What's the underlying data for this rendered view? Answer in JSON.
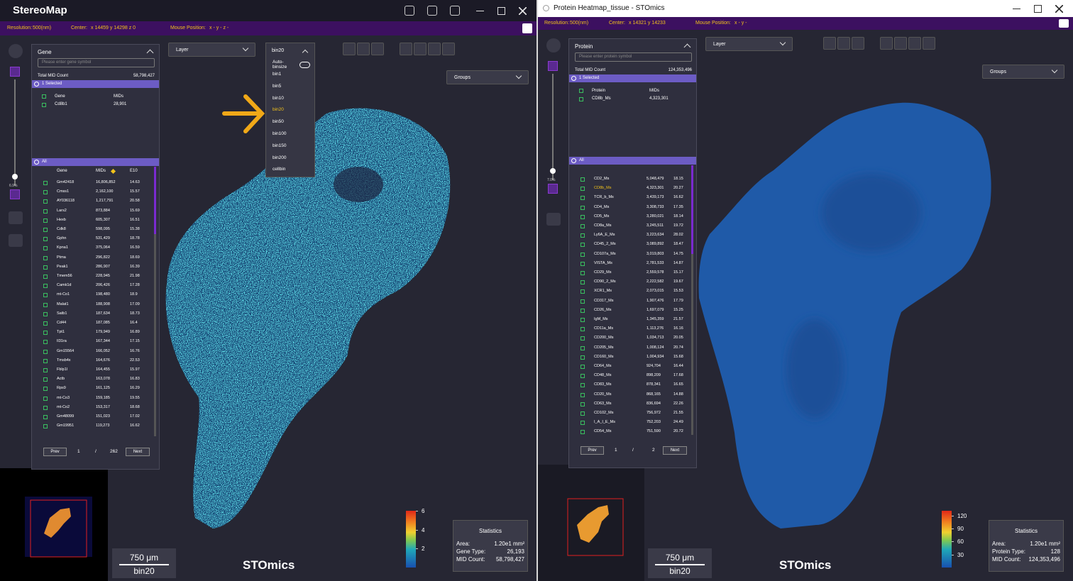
{
  "windows": [
    {
      "title": "StereoMap",
      "info": [
        [
          "Resolution:",
          "500(nm)"
        ],
        [
          "Center:",
          "x  14459  y  14298  z  0"
        ],
        [
          "Mouse Position:",
          "x -  y -  z -"
        ]
      ],
      "panel": {
        "title": "Gene",
        "search_placeholder": "Please enter gene symbol",
        "total_label": "Total MID Count",
        "total": "58,798,427",
        "selected_label": "1 Selected",
        "selected_headers": [
          "Gene",
          "MIDs"
        ],
        "selected_rows": [
          [
            "Cd8b1",
            "28,901"
          ]
        ],
        "all_label": "All",
        "all_headers": [
          "Gene",
          "MIDs",
          "E10"
        ],
        "rows": [
          [
            "Gm42418",
            "16,806,852",
            "14.63"
          ],
          [
            "Cmss1",
            "2,162,100",
            "15.57"
          ],
          [
            "AY036118",
            "1,217,791",
            "20.58"
          ],
          [
            "Lars2",
            "873,884",
            "15.69"
          ],
          [
            "Hexb",
            "605,307",
            "16.51"
          ],
          [
            "Cdk8",
            "598,095",
            "15.38"
          ],
          [
            "Gphn",
            "531,429",
            "18.78"
          ],
          [
            "Kpna1",
            "375,064",
            "16.59"
          ],
          [
            "Ptma",
            "296,822",
            "18.69"
          ],
          [
            "Peak1",
            "286,907",
            "16.39"
          ],
          [
            "Tmem56",
            "228,945",
            "21.98"
          ],
          [
            "Camk1d",
            "206,426",
            "17.28"
          ],
          [
            "mt-Co1",
            "198,480",
            "18.9"
          ],
          [
            "Malat1",
            "188,908",
            "17.09"
          ],
          [
            "Satb1",
            "187,634",
            "18.73"
          ],
          [
            "Cd44",
            "187,085",
            "16.4"
          ],
          [
            "Tpt1",
            "179,949",
            "16.89"
          ],
          [
            "Il31ra",
            "167,344",
            "17.15"
          ],
          [
            "Gm15564",
            "166,052",
            "16.76"
          ],
          [
            "Tmsb4x",
            "164,676",
            "22.53"
          ],
          [
            "Fblp1l",
            "164,455",
            "15.97"
          ],
          [
            "Actb",
            "163,078",
            "16.83"
          ],
          [
            "Rps9",
            "161,125",
            "16.29"
          ],
          [
            "mt-Co3",
            "159,185",
            "19.55"
          ],
          [
            "mt-Co2",
            "153,317",
            "18.68"
          ],
          [
            "Gm48099",
            "151,023",
            "17.02"
          ],
          [
            "Gm19951",
            "119,273",
            "16.62"
          ]
        ],
        "prev": "Prev",
        "page": "1",
        "sep": "/",
        "pages": "262",
        "next": "Next"
      },
      "layer": "Layer",
      "bin": {
        "current": "bin20",
        "options": [
          "Auto-binsize",
          "bin1",
          "bin5",
          "bin10",
          "bin20",
          "bin50",
          "bin100",
          "bin150",
          "bin200",
          "cellbin"
        ]
      },
      "groups": "Groups",
      "zoom": "6.9%",
      "colorbar": {
        "lim": [
          0,
          6
        ],
        "ticks": [
          6,
          4,
          2
        ]
      },
      "stats": {
        "title": "Statistics",
        "rows": [
          [
            "Area:",
            "1.20e1 mm²"
          ],
          [
            "Gene Type:",
            "26,193"
          ],
          [
            "MID Count:",
            "58,798,427"
          ]
        ]
      },
      "scale": {
        "length": "750 μm",
        "bin": "bin20"
      },
      "logo": "STOmics"
    },
    {
      "title": "Protein Heatmap_tissue - STOmics",
      "info": [
        [
          "Resolution:",
          "500(nm)"
        ],
        [
          "Center:",
          "x  14321  y  14233"
        ],
        [
          "Mouse Position:",
          "x -  y -"
        ]
      ],
      "panel": {
        "title": "Protein",
        "search_placeholder": "Please enter protein symbol",
        "total_label": "Total MID Count",
        "total": "124,353,496",
        "selected_label": "1 Selected",
        "selected_headers": [
          "Protein",
          "MIDs"
        ],
        "selected_rows": [
          [
            "CD8b_Ms",
            "4,323,301"
          ]
        ],
        "all_label": "All",
        "highlight_row": 1,
        "rows": [
          [
            "CD2_Ms",
            "5,048,479",
            "18.15"
          ],
          [
            "CD8b_Ms",
            "4,323,301",
            "20.27"
          ],
          [
            "TCR_b_Ms",
            "3,439,173",
            "16.62"
          ],
          [
            "CD4_Ms",
            "3,308,733",
            "17.35"
          ],
          [
            "CD5_Ms",
            "3,280,021",
            "18.14"
          ],
          [
            "CD8a_Ms",
            "3,245,511",
            "19.72"
          ],
          [
            "Ly6A_E_Ms",
            "3,223,634",
            "28.02"
          ],
          [
            "CD45_2_Ms",
            "3,089,892",
            "18.47"
          ],
          [
            "CD107a_Ms",
            "3,019,803",
            "14.75"
          ],
          [
            "VISTA_Ms",
            "2,781,533",
            "14.87"
          ],
          [
            "CD29_Ms",
            "2,559,578",
            "15.17"
          ],
          [
            "CD90_2_Ms",
            "2,222,582",
            "19.67"
          ],
          [
            "XCR1_Ms",
            "2,073,015",
            "15.53"
          ],
          [
            "CD317_Ms",
            "1,907,476",
            "17.79"
          ],
          [
            "CD26_Ms",
            "1,697,079",
            "15.25"
          ],
          [
            "IgM_Ms",
            "1,345,359",
            "21.57"
          ],
          [
            "CD11a_Ms",
            "1,113,276",
            "16.16"
          ],
          [
            "CD200_Ms",
            "1,034,713",
            "20.05"
          ],
          [
            "CD205_Ms",
            "1,008,124",
            "20.74"
          ],
          [
            "CD160_Ms",
            "1,004,934",
            "15.68"
          ],
          [
            "CD64_Ms",
            "924,704",
            "16.44"
          ],
          [
            "CD48_Ms",
            "898,209",
            "17.68"
          ],
          [
            "CD83_Ms",
            "878,341",
            "16.65"
          ],
          [
            "CD20_Ms",
            "868,165",
            "14.88"
          ],
          [
            "CD63_Ms",
            "836,694",
            "22.26"
          ],
          [
            "CD102_Ms",
            "756,972",
            "21.55"
          ],
          [
            "I_A_I_E_Ms",
            "752,203",
            "24.49"
          ],
          [
            "CD54_Ms",
            "751,590",
            "20.72"
          ]
        ],
        "prev": "Prev",
        "page": "1",
        "sep": "/",
        "pages": "2",
        "next": "Next"
      },
      "layer": "Layer",
      "groups": "Groups",
      "zoom": "7.0%",
      "colorbar": {
        "lim": [
          0,
          131
        ],
        "ticks": [
          120,
          90,
          60,
          30
        ]
      },
      "stats": {
        "title": "Statistics",
        "rows": [
          [
            "Area:",
            "1.20e1 mm²"
          ],
          [
            "Protein Type:",
            "128"
          ],
          [
            "MID Count:",
            "124,353,496"
          ]
        ]
      },
      "scale": {
        "length": "750 μm",
        "bin": "bin20"
      },
      "logo": "STOmics"
    }
  ]
}
